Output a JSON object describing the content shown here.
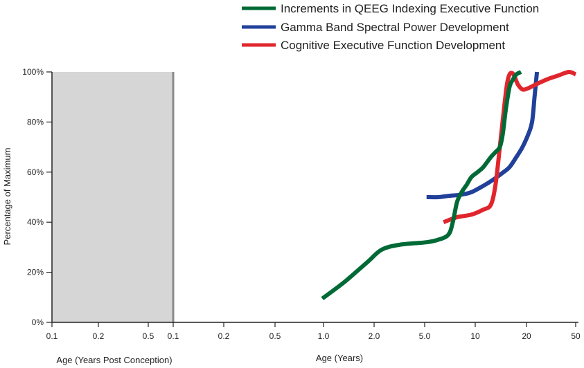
{
  "chart_data": {
    "type": "line",
    "ylabel": "Percentage of Maximum",
    "xlabel": "Age (Years)",
    "prenatal_xlabel": "Age (Years Post Conception)",
    "y_ticks": [
      "0%",
      "20%",
      "40%",
      "60%",
      "80%",
      "100%"
    ],
    "ylim": [
      0,
      100
    ],
    "x_scale": "log",
    "xlim": [
      0.1,
      50
    ],
    "prenatal_ticks": [
      "0.1",
      "0.2",
      "0.5"
    ],
    "x_ticks": [
      "0.1",
      "0.2",
      "0.5",
      "1.0",
      "2.0",
      "5.0",
      "10",
      "20",
      "50"
    ],
    "prenatal_shaded": true,
    "grid": false,
    "legend_position": "top-right",
    "series": [
      {
        "name": "Increments in QEEG Indexing Executive Function",
        "color": "#006a36",
        "x": [
          1.0,
          1.4,
          2.0,
          2.5,
          3.3,
          5.0,
          6.0,
          7.0,
          7.5,
          8.0,
          8.6,
          9.3,
          10.0,
          11.0,
          12.0,
          13.5,
          14.5,
          15.5,
          16.2,
          17.0,
          18.0,
          19.0,
          20.0,
          21.5
        ],
        "values": [
          9.5,
          16,
          24,
          29,
          31,
          32,
          33,
          35,
          40,
          48,
          52,
          55,
          58,
          60,
          62,
          66,
          68,
          70,
          75,
          85,
          94,
          97,
          99,
          100
        ]
      },
      {
        "name": "Gamma Band Spectral Power Development",
        "color": "#21409a",
        "x": [
          5.0,
          6.0,
          7.0,
          8.5,
          10.0,
          12.0,
          14.0,
          16.0,
          18.0,
          20.0,
          22.0,
          24.0,
          25.5,
          26.5,
          27.5
        ],
        "values": [
          50,
          50,
          50.5,
          51,
          52,
          54.5,
          57,
          59.5,
          62,
          66,
          70,
          75,
          80,
          90,
          100
        ]
      },
      {
        "name": "Cognitive Executive Function Development",
        "color": "#e0262d",
        "x": [
          6.5,
          8.0,
          10.0,
          12.0,
          13.5,
          14.5,
          15.5,
          16.5,
          17.3,
          18.0,
          18.8,
          19.5,
          20.5,
          22.0,
          24.0,
          27.0,
          32.0,
          38.0,
          45.0,
          50.0
        ],
        "values": [
          40,
          42,
          43,
          45,
          47,
          55,
          70,
          85,
          95,
          99,
          99.5,
          98,
          95,
          93,
          93.5,
          95,
          97,
          98.5,
          100,
          99
        ]
      }
    ]
  }
}
